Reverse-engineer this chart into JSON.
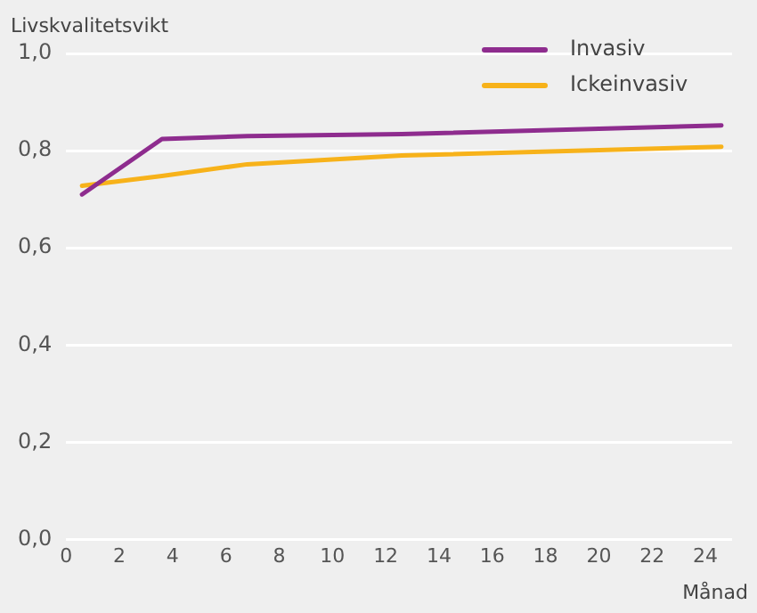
{
  "chart_data": {
    "type": "line",
    "ylabel": "Livskvalitetsvikt",
    "xlabel": "Månad",
    "xlim": [
      0,
      25
    ],
    "xticks": [
      0,
      2,
      4,
      6,
      8,
      10,
      12,
      14,
      16,
      18,
      20,
      22,
      24
    ],
    "ylim": [
      0,
      1
    ],
    "yticks": [
      {
        "value": 0,
        "label": "0,0"
      },
      {
        "value": 0.2,
        "label": "0,2"
      },
      {
        "value": 0.4,
        "label": "0,4"
      },
      {
        "value": 0.6,
        "label": "0,6"
      },
      {
        "value": 0.8,
        "label": "0,8"
      },
      {
        "value": 1,
        "label": "1,0"
      }
    ],
    "grid": "y",
    "legend": "top right",
    "marker": "none",
    "line_style": "solid",
    "series": [
      {
        "name": "Invasiv",
        "color": "#8e2c8e",
        "x": [
          0.6,
          3.6,
          6.8,
          12.6,
          24.6
        ],
        "values": [
          0.71,
          0.824,
          0.83,
          0.834,
          0.852
        ]
      },
      {
        "name": "Ickeinvasiv",
        "color": "#f7b21a",
        "x": [
          0.6,
          3.6,
          6.8,
          12.6,
          24.6
        ],
        "values": [
          0.728,
          0.748,
          0.772,
          0.79,
          0.808
        ]
      }
    ]
  }
}
